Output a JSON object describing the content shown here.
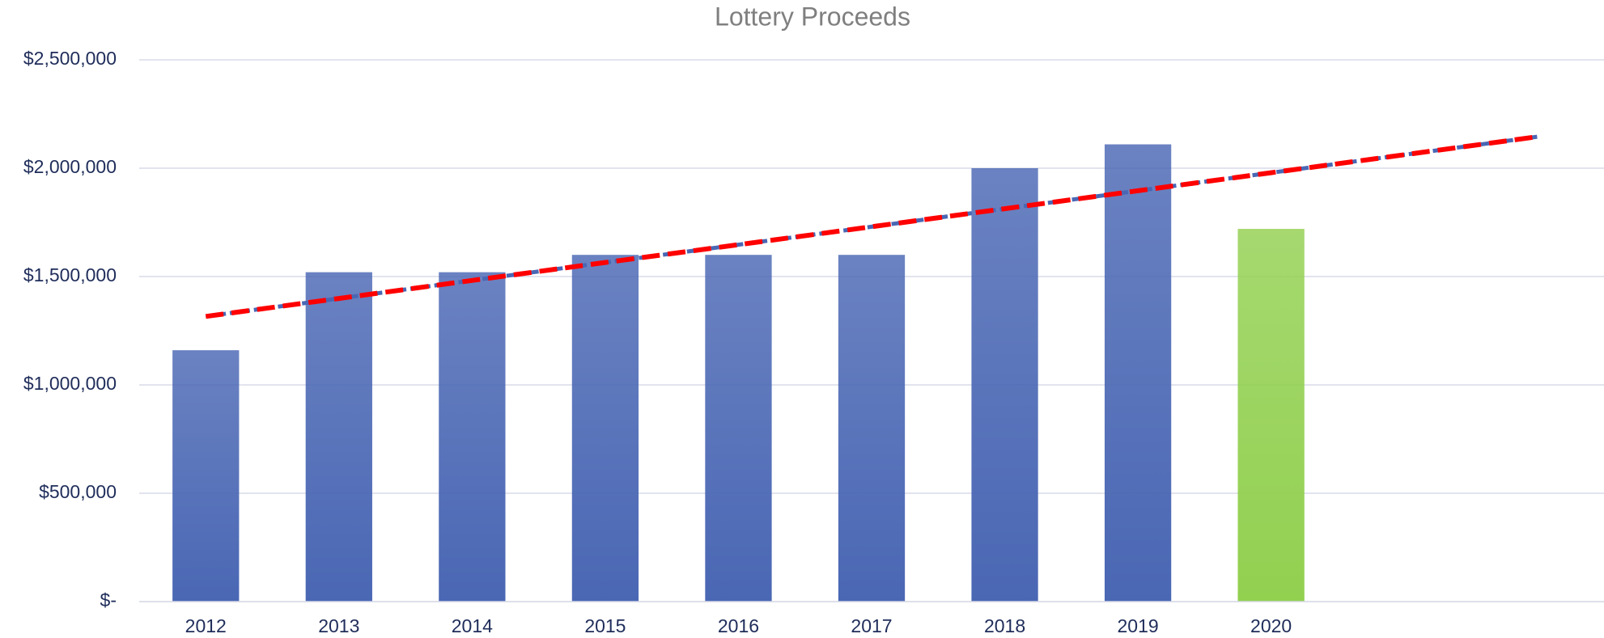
{
  "chart_data": {
    "type": "bar",
    "title": "Lottery Proceeds",
    "categories": [
      "2012",
      "2013",
      "2014",
      "2015",
      "2016",
      "2017",
      "2018",
      "2019",
      "2020",
      null,
      null
    ],
    "values": [
      1160000,
      1520000,
      1520000,
      1600000,
      1600000,
      1600000,
      2000000,
      2110000,
      1720000,
      null,
      null
    ],
    "colors": [
      "#4a67b4",
      "#4a67b4",
      "#4a67b4",
      "#4a67b4",
      "#4a67b4",
      "#4a67b4",
      "#4a67b4",
      "#4a67b4",
      "#92d050",
      null,
      null
    ],
    "trendline": {
      "type": "linear",
      "color": "#ff0000",
      "values": [
        1316000,
        1399000,
        1482000,
        1565000,
        1647000,
        1730000,
        1813000,
        1896000,
        1979000,
        2062000,
        2145000
      ]
    },
    "ylim": [
      0,
      2500000
    ],
    "yticks": [
      {
        "value": 0,
        "label": "$-"
      },
      {
        "value": 500000,
        "label": "$500,000"
      },
      {
        "value": 1000000,
        "label": "$1,000,000"
      },
      {
        "value": 1500000,
        "label": "$1,500,000"
      },
      {
        "value": 2000000,
        "label": "$2,000,000"
      },
      {
        "value": 2500000,
        "label": "$2,500,000"
      }
    ],
    "grid": true
  }
}
